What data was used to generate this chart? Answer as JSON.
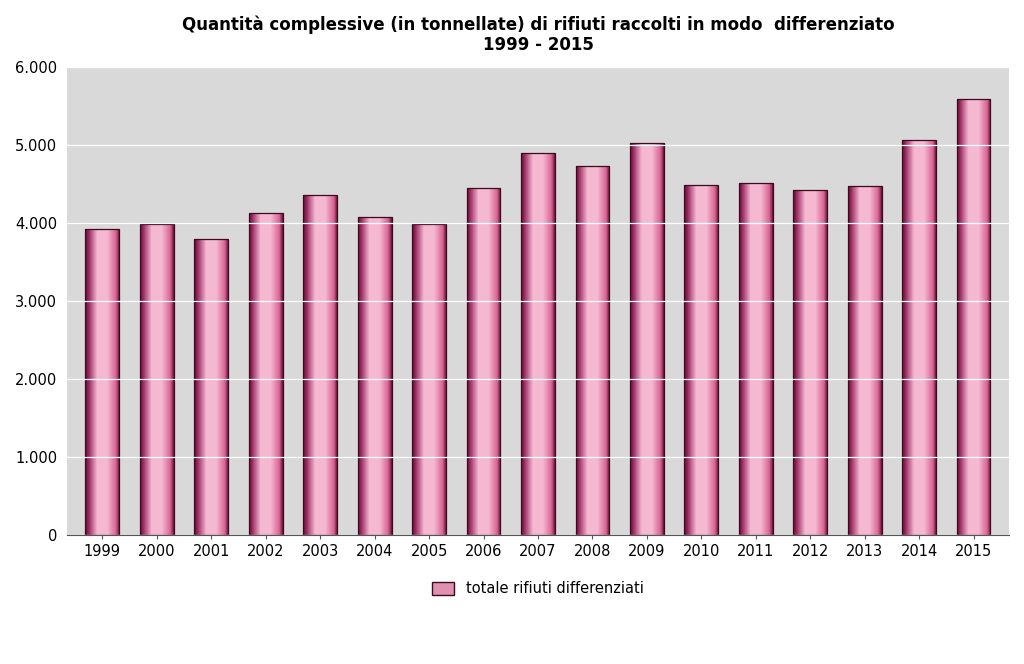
{
  "title": "Quantità complessive (in tonnellate) di rifiuti raccolti in modo  differenziato\n1999 - 2015",
  "categories": [
    "1999",
    "2000",
    "2001",
    "2002",
    "2003",
    "2004",
    "2005",
    "2006",
    "2007",
    "2008",
    "2009",
    "2010",
    "2011",
    "2012",
    "2013",
    "2014",
    "2015"
  ],
  "values": [
    3920,
    3990,
    3790,
    4130,
    4360,
    4070,
    3990,
    4450,
    4900,
    4730,
    5020,
    4490,
    4510,
    4420,
    4470,
    5060,
    5590
  ],
  "ylim": [
    0,
    6000
  ],
  "yticks": [
    0,
    1000,
    2000,
    3000,
    4000,
    5000,
    6000
  ],
  "ytick_labels": [
    "0",
    "1.000",
    "2.000",
    "3.000",
    "4.000",
    "5.000",
    "6.000"
  ],
  "bar_dark": [
    0.58,
    0.13,
    0.35
  ],
  "bar_light": [
    0.96,
    0.72,
    0.82
  ],
  "bar_mid": [
    0.85,
    0.4,
    0.58
  ],
  "bar_edge_color": "#3d0a1a",
  "legend_label": "totale rifiuti differenziati",
  "legend_color": "#e090b0",
  "legend_edge_color": "#3d0a1a",
  "plot_bg_color": "#ffffff",
  "axes_bg_color": "#d9d9d9",
  "grid_color": "#ffffff",
  "title_fontsize": 12,
  "tick_fontsize": 10.5,
  "legend_fontsize": 10.5
}
